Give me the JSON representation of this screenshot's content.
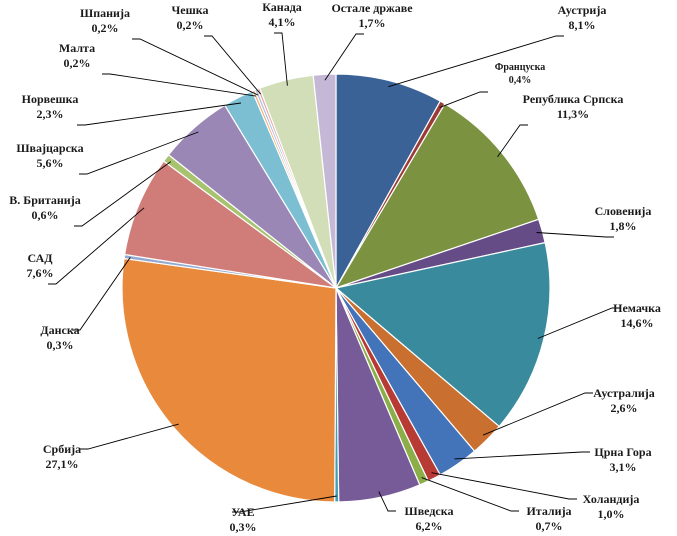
{
  "chart_data": {
    "type": "pie",
    "title": "",
    "legend": "none",
    "slice_border_color": "#ffffff",
    "leader_line_color": "#000000",
    "slices": [
      {
        "label": "Аустрија",
        "value": 8.1,
        "value_label": "8,1%",
        "color": "#3A6296"
      },
      {
        "label": "Француска",
        "value": 0.4,
        "value_label": "0,4%",
        "color": "#9C3A38"
      },
      {
        "label": "Република Српска",
        "value": 11.3,
        "value_label": "11,3%",
        "color": "#7B9341"
      },
      {
        "label": "Словенија",
        "value": 1.8,
        "value_label": "1,8%",
        "color": "#664C86"
      },
      {
        "label": "Немачка",
        "value": 14.6,
        "value_label": "14,6%",
        "color": "#3A8A9E"
      },
      {
        "label": "Аустралија",
        "value": 2.6,
        "value_label": "2,6%",
        "color": "#C96F30"
      },
      {
        "label": "Црна Гора",
        "value": 3.1,
        "value_label": "3,1%",
        "color": "#4373B8"
      },
      {
        "label": "Холандија",
        "value": 1.0,
        "value_label": "1,0%",
        "color": "#B83A35"
      },
      {
        "label": "Италија",
        "value": 0.7,
        "value_label": "0,7%",
        "color": "#8BAE48"
      },
      {
        "label": "Шведска",
        "value": 6.2,
        "value_label": "6,2%",
        "color": "#775A98"
      },
      {
        "label": "УАЕ",
        "value": 0.3,
        "value_label": "0,3%",
        "color": "#3EA0B8"
      },
      {
        "label": "Србија",
        "value": 27.1,
        "value_label": "27,1%",
        "color": "#E8893C"
      },
      {
        "label": "Данска",
        "value": 0.3,
        "value_label": "0,3%",
        "color": "#93A9CF"
      },
      {
        "label": "САД",
        "value": 7.6,
        "value_label": "7,6%",
        "color": "#D07C79"
      },
      {
        "label": "В. Британија",
        "value": 0.6,
        "value_label": "0,6%",
        "color": "#A7C36F"
      },
      {
        "label": "Швајцарска",
        "value": 5.6,
        "value_label": "5,6%",
        "color": "#9A87B6"
      },
      {
        "label": "Норвешка",
        "value": 2.3,
        "value_label": "2,3%",
        "color": "#7CBFD3"
      },
      {
        "label": "Малта",
        "value": 0.2,
        "value_label": "0,2%",
        "color": "#F2AE78"
      },
      {
        "label": "Шпанија",
        "value": 0.2,
        "value_label": "0,2%",
        "color": "#A9BEDD"
      },
      {
        "label": "Чешка",
        "value": 0.2,
        "value_label": "0,2%",
        "color": "#E6A8A6"
      },
      {
        "label": "Канада",
        "value": 4.1,
        "value_label": "4,1%",
        "color": "#D2DEB8"
      },
      {
        "label": "Остале државе",
        "value": 1.7,
        "value_label": "1,7%",
        "color": "#C5B8D6"
      }
    ]
  }
}
